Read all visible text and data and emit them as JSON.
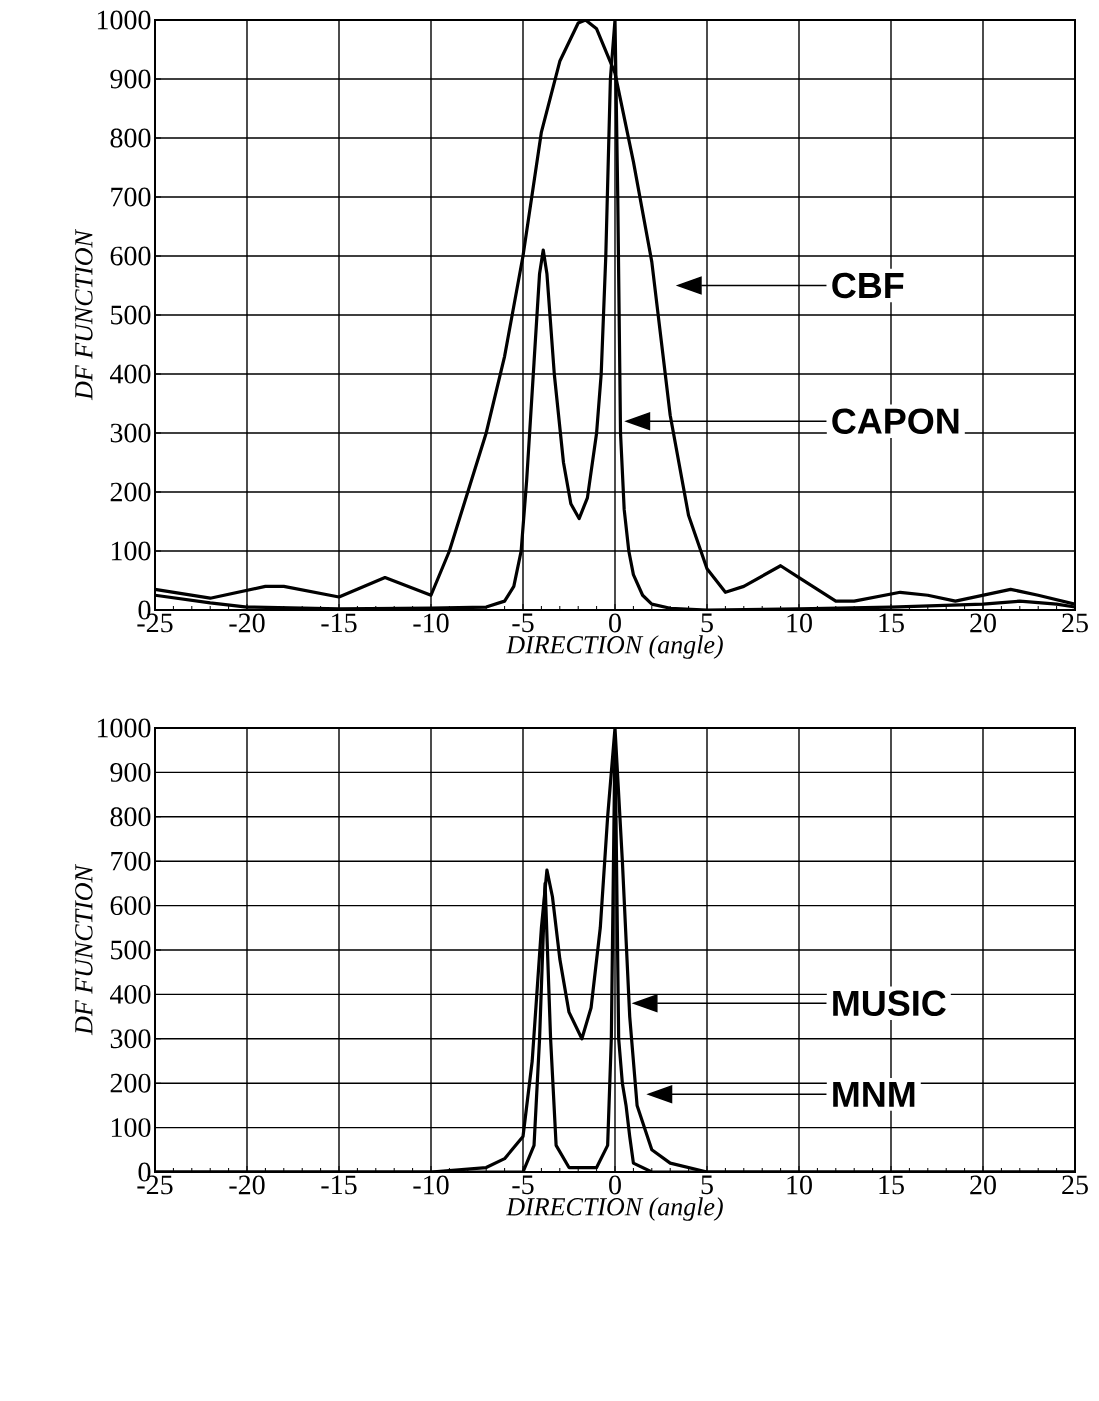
{
  "chart_data": [
    {
      "type": "line",
      "xlabel": "DIRECTION (angle)",
      "ylabel": "DF FUNCTION",
      "xlim": [
        -25,
        25
      ],
      "ylim": [
        0,
        1000
      ],
      "xticks": [
        -25,
        -20,
        -15,
        -10,
        -5,
        0,
        5,
        10,
        15,
        20,
        25
      ],
      "yticks": [
        0,
        100,
        200,
        300,
        400,
        500,
        600,
        700,
        800,
        900,
        1000
      ],
      "grid": true,
      "legend": "right",
      "marker": "none",
      "series": [
        {
          "name": "CBF",
          "color": "#000000",
          "x": [
            -25,
            -22,
            -19,
            -18,
            -15,
            -12.5,
            -10,
            -9,
            -8,
            -7,
            -6,
            -5,
            -4,
            -3,
            -2,
            -1.6,
            -1,
            0,
            1,
            2,
            3,
            4,
            5,
            6,
            7,
            9,
            10,
            12,
            13,
            15.5,
            17,
            18.5,
            21.5,
            23,
            25
          ],
          "values": [
            35,
            20,
            40,
            40,
            22,
            55,
            25,
            100,
            200,
            300,
            430,
            600,
            810,
            930,
            995,
            1000,
            985,
            910,
            760,
            590,
            330,
            160,
            70,
            30,
            40,
            75,
            55,
            15,
            15,
            30,
            25,
            15,
            35,
            25,
            10
          ]
        },
        {
          "name": "CAPON",
          "color": "#000000",
          "x": [
            -25,
            -22,
            -20,
            -15,
            -10,
            -7,
            -6,
            -5.5,
            -5.1,
            -4.8,
            -4.4,
            -4.1,
            -3.9,
            -3.7,
            -3.3,
            -2.8,
            -2.4,
            -1.95,
            -1.5,
            -1,
            -0.75,
            -0.5,
            -0.25,
            0,
            0.15,
            0.3,
            0.5,
            0.75,
            1,
            1.5,
            2,
            3,
            5,
            10,
            15,
            20,
            22,
            24,
            25
          ],
          "values": [
            25,
            12,
            5,
            2,
            3,
            5,
            15,
            40,
            100,
            220,
            420,
            570,
            610,
            570,
            400,
            250,
            180,
            155,
            190,
            300,
            400,
            600,
            900,
            1000,
            700,
            300,
            170,
            100,
            60,
            25,
            10,
            3,
            0,
            2,
            5,
            10,
            15,
            10,
            5
          ]
        }
      ]
    },
    {
      "type": "line",
      "xlabel": "DIRECTION (angle)",
      "ylabel": "DF FUNCTION",
      "xlim": [
        -25,
        25
      ],
      "ylim": [
        0,
        1000
      ],
      "xticks": [
        -25,
        -20,
        -15,
        -10,
        -5,
        0,
        5,
        10,
        15,
        20,
        25
      ],
      "yticks": [
        0,
        100,
        200,
        300,
        400,
        500,
        600,
        700,
        800,
        900,
        1000
      ],
      "grid": true,
      "legend": "right",
      "marker": "none",
      "series": [
        {
          "name": "MUSIC",
          "color": "#000000",
          "x": [
            -25,
            -10,
            -7,
            -6,
            -5,
            -4.5,
            -4,
            -3.7,
            -3.4,
            -3,
            -2.5,
            -1.8,
            -1.3,
            -0.8,
            -0.4,
            0,
            0.4,
            0.8,
            1.2,
            2,
            3,
            5,
            25
          ],
          "values": [
            0,
            0,
            10,
            30,
            80,
            250,
            550,
            680,
            620,
            480,
            360,
            300,
            370,
            550,
            800,
            1000,
            700,
            350,
            150,
            50,
            20,
            0,
            0
          ]
        },
        {
          "name": "MNM",
          "color": "#000000",
          "x": [
            -25,
            -5,
            -4.4,
            -4.1,
            -3.8,
            -3.5,
            -3.2,
            -2.5,
            -1,
            -0.4,
            -0.2,
            0,
            0.2,
            0.4,
            0.6,
            0.8,
            1,
            2,
            5,
            25
          ],
          "values": [
            0,
            0,
            60,
            300,
            650,
            300,
            60,
            10,
            10,
            60,
            300,
            980,
            300,
            200,
            150,
            80,
            20,
            0,
            0,
            0
          ]
        }
      ]
    }
  ]
}
